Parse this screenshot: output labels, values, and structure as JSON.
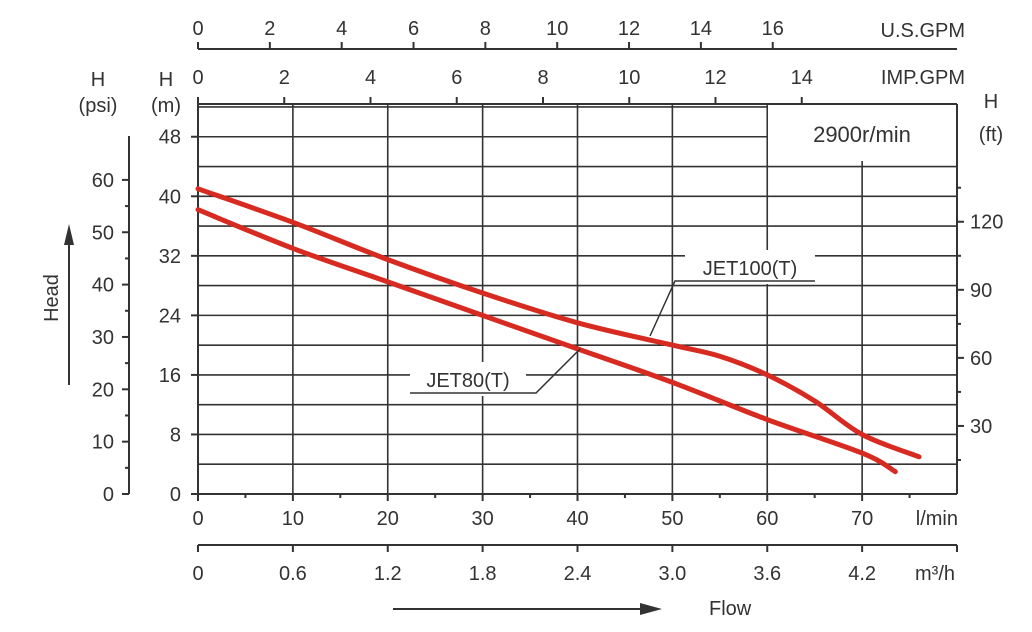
{
  "chart_data": {
    "type": "line",
    "speed_label": "2900r/min",
    "x_label": "Flow",
    "y_label": "Head",
    "x_axes": {
      "lmin": {
        "unit": "l/min",
        "ticks": [
          "0",
          "10",
          "20",
          "30",
          "40",
          "50",
          "60",
          "70"
        ],
        "range": [
          0,
          80
        ]
      },
      "m3h": {
        "unit": "m³/h",
        "ticks": [
          "0",
          "0.6",
          "1.2",
          "1.8",
          "2.4",
          "3.0",
          "3.6",
          "4.2"
        ],
        "range": [
          0,
          4.8
        ]
      },
      "usgpm": {
        "unit": "U.S.GPM",
        "ticks": [
          "0",
          "2",
          "4",
          "6",
          "8",
          "10",
          "12",
          "14",
          "16"
        ],
        "range": [
          0,
          21.13
        ]
      },
      "impgpm": {
        "unit": "IMP.GPM",
        "ticks": [
          "0",
          "2",
          "4",
          "6",
          "8",
          "10",
          "12",
          "14"
        ],
        "range": [
          0,
          17.6
        ]
      }
    },
    "y_axes": {
      "m": {
        "unit_top": "H",
        "unit_bottom": "(m)",
        "ticks": [
          "0",
          "8",
          "16",
          "24",
          "32",
          "40",
          "48"
        ],
        "range": [
          0,
          52.4
        ]
      },
      "psi": {
        "unit_top": "H",
        "unit_bottom": "(psi)",
        "ticks": [
          "0",
          "10",
          "20",
          "30",
          "40",
          "50",
          "60"
        ],
        "range": [
          0,
          74.5
        ]
      },
      "ft": {
        "unit_top": "H",
        "unit_bottom": "(ft)",
        "ticks": [
          "30",
          "60",
          "90",
          "120"
        ],
        "range": [
          0,
          171.9
        ]
      }
    },
    "grid": true,
    "series": [
      {
        "name": "JET100(T)",
        "color": "#d72b22",
        "x": [
          0,
          10,
          20,
          30,
          40,
          50,
          55,
          60,
          65,
          70,
          76
        ],
        "y": [
          41,
          36.5,
          31.5,
          27,
          23,
          20,
          18.5,
          16,
          12.5,
          8,
          5
        ]
      },
      {
        "name": "JET80(T)",
        "color": "#d72b22",
        "x": [
          0,
          10,
          20,
          30,
          40,
          50,
          60,
          70,
          73.5
        ],
        "y": [
          38.2,
          33,
          28.5,
          24,
          19.5,
          15,
          10,
          5.5,
          3
        ]
      }
    ]
  }
}
